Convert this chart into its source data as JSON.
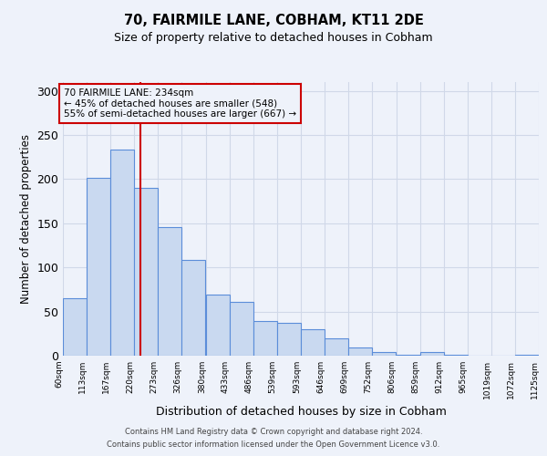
{
  "title": "70, FAIRMILE LANE, COBHAM, KT11 2DE",
  "subtitle": "Size of property relative to detached houses in Cobham",
  "xlabel": "Distribution of detached houses by size in Cobham",
  "ylabel": "Number of detached properties",
  "bar_left_edges": [
    60,
    113,
    167,
    220,
    273,
    326,
    380,
    433,
    486,
    539,
    593,
    646,
    699,
    752,
    806,
    859,
    912,
    965,
    1019,
    1072
  ],
  "bar_heights": [
    65,
    202,
    234,
    190,
    146,
    108,
    69,
    61,
    39,
    37,
    30,
    20,
    9,
    4,
    1,
    4,
    1,
    0,
    0,
    1
  ],
  "bin_width": 53,
  "tick_labels": [
    "60sqm",
    "113sqm",
    "167sqm",
    "220sqm",
    "273sqm",
    "326sqm",
    "380sqm",
    "433sqm",
    "486sqm",
    "539sqm",
    "593sqm",
    "646sqm",
    "699sqm",
    "752sqm",
    "806sqm",
    "859sqm",
    "912sqm",
    "965sqm",
    "1019sqm",
    "1072sqm",
    "1125sqm"
  ],
  "bar_fill_color": "#c9d9f0",
  "bar_edge_color": "#5b8dd9",
  "vline_x": 234,
  "vline_color": "#cc0000",
  "annotation_box_color": "#cc0000",
  "annotation_line1": "70 FAIRMILE LANE: 234sqm",
  "annotation_line2": "← 45% of detached houses are smaller (548)",
  "annotation_line3": "55% of semi-detached houses are larger (667) →",
  "ylim": [
    0,
    310
  ],
  "yticks": [
    0,
    50,
    100,
    150,
    200,
    250,
    300
  ],
  "grid_color": "#d0d8e8",
  "background_color": "#eef2fa",
  "footnote1": "Contains HM Land Registry data © Crown copyright and database right 2024.",
  "footnote2": "Contains public sector information licensed under the Open Government Licence v3.0."
}
